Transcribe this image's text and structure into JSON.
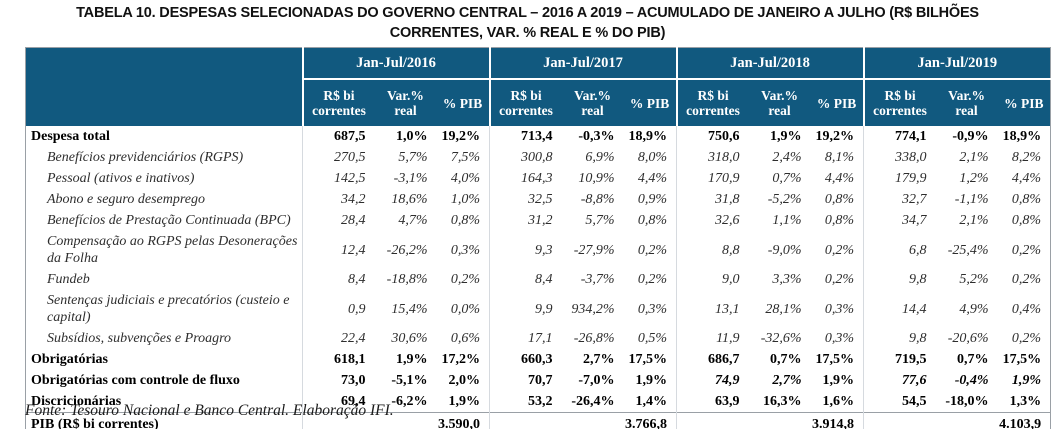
{
  "title": {
    "line1": "TABELA 10. DESPESAS SELECIONADAS DO GOVERNO CENTRAL – 2016 A 2019 – ACUMULADO DE JANEIRO A JULHO (R$ BILHÕES",
    "line2": "CORRENTES, VAR. % REAL E % DO PIB)"
  },
  "source_note": "Fonte: Tesouro Nacional e Banco Central. Elaboração IFI.",
  "colors": {
    "header_bg": "#11597F",
    "header_text": "#FFFFFF",
    "outer_border": "#9AA0A6",
    "inner_border": "#D6DADF"
  },
  "table": {
    "year_groups": [
      "Jan-Jul/2016",
      "Jan-Jul/2017",
      "Jan-Jul/2018",
      "Jan-Jul/2019"
    ],
    "sub_headers": [
      "R$ bi correntes",
      "Var.% real",
      "% PIB"
    ],
    "rows": [
      {
        "label": "Despesa total",
        "style": "bold",
        "values": [
          "687,5",
          "1,0%",
          "19,2%",
          "713,4",
          "-0,3%",
          "18,9%",
          "750,6",
          "1,9%",
          "19,2%",
          "774,1",
          "-0,9%",
          "18,9%"
        ]
      },
      {
        "label": "Benefícios previdenciários (RGPS)",
        "style": "italic",
        "values": [
          "270,5",
          "5,7%",
          "7,5%",
          "300,8",
          "6,9%",
          "8,0%",
          "318,0",
          "2,4%",
          "8,1%",
          "338,0",
          "2,1%",
          "8,2%"
        ]
      },
      {
        "label": "Pessoal (ativos e inativos)",
        "style": "italic",
        "values": [
          "142,5",
          "-3,1%",
          "4,0%",
          "164,3",
          "10,9%",
          "4,4%",
          "170,9",
          "0,7%",
          "4,4%",
          "179,9",
          "1,2%",
          "4,4%"
        ]
      },
      {
        "label": "Abono e seguro desemprego",
        "style": "italic",
        "values": [
          "34,2",
          "18,6%",
          "1,0%",
          "32,5",
          "-8,8%",
          "0,9%",
          "31,8",
          "-5,2%",
          "0,8%",
          "32,7",
          "-1,1%",
          "0,8%"
        ]
      },
      {
        "label": "Benefícios de Prestação Continuada (BPC)",
        "style": "italic",
        "values": [
          "28,4",
          "4,7%",
          "0,8%",
          "31,2",
          "5,7%",
          "0,8%",
          "32,6",
          "1,1%",
          "0,8%",
          "34,7",
          "2,1%",
          "0,8%"
        ]
      },
      {
        "label": "Compensação ao RGPS pelas Desonerações da Folha",
        "style": "italic",
        "values": [
          "12,4",
          "-26,2%",
          "0,3%",
          "9,3",
          "-27,9%",
          "0,2%",
          "8,8",
          "-9,0%",
          "0,2%",
          "6,8",
          "-25,4%",
          "0,2%"
        ]
      },
      {
        "label": "Fundeb",
        "style": "italic",
        "values": [
          "8,4",
          "-18,8%",
          "0,2%",
          "8,4",
          "-3,7%",
          "0,2%",
          "9,0",
          "3,3%",
          "0,2%",
          "9,8",
          "5,2%",
          "0,2%"
        ]
      },
      {
        "label": "Sentenças judiciais e precatórios (custeio e capital)",
        "style": "italic",
        "values": [
          "0,9",
          "15,4%",
          "0,0%",
          "9,9",
          "934,2%",
          "0,3%",
          "13,1",
          "28,1%",
          "0,3%",
          "14,4",
          "4,9%",
          "0,4%"
        ]
      },
      {
        "label": "Subsídios, subvenções e Proagro",
        "style": "italic",
        "values": [
          "22,4",
          "30,6%",
          "0,6%",
          "17,1",
          "-26,8%",
          "0,5%",
          "11,9",
          "-32,6%",
          "0,3%",
          "9,8",
          "-20,6%",
          "0,2%"
        ]
      },
      {
        "label": "Obrigatórias",
        "style": "bold",
        "values": [
          "618,1",
          "1,9%",
          "17,2%",
          "660,3",
          "2,7%",
          "17,5%",
          "686,7",
          "0,7%",
          "17,5%",
          "719,5",
          "0,7%",
          "17,5%"
        ]
      },
      {
        "label": "Obrigatórias com controle de fluxo",
        "style": "bold",
        "italic_cells": [
          6,
          7,
          9,
          10,
          11
        ],
        "values": [
          "73,0",
          "-5,1%",
          "2,0%",
          "70,7",
          "-7,0%",
          "1,9%",
          "74,9",
          "2,7%",
          "1,9%",
          "77,6",
          "-0,4%",
          "1,9%"
        ]
      },
      {
        "label": "Discricionárias",
        "style": "bold",
        "values": [
          "69,4",
          "-6,2%",
          "1,9%",
          "53,2",
          "-26,4%",
          "1,4%",
          "63,9",
          "16,3%",
          "1,6%",
          "54,5",
          "-18,0%",
          "1,3%"
        ]
      }
    ],
    "pib_row": {
      "label": "PIB (R$ bi correntes)",
      "values": [
        "3.590,0",
        "3.766,8",
        "3.914,8",
        "4.103,9"
      ]
    }
  }
}
